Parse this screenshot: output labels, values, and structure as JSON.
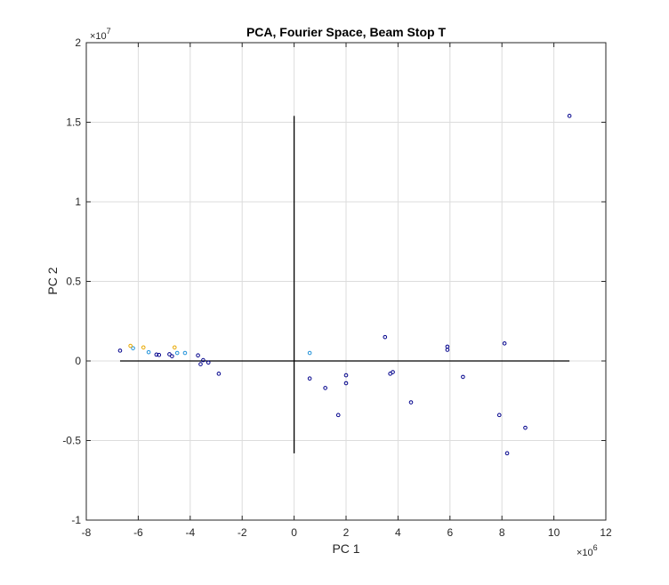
{
  "chart_data": {
    "type": "scatter",
    "title": "PCA, Fourier Space, Beam Stop T",
    "xlabel": "PC 1",
    "ylabel": "PC 2",
    "xlim": [
      -8000000,
      12000000
    ],
    "ylim": [
      -10000000,
      20000000
    ],
    "grid": true,
    "x_ticks": [
      -8,
      -6,
      -4,
      -2,
      0,
      2,
      4,
      6,
      8,
      10,
      12
    ],
    "y_ticks": [
      -1,
      -0.5,
      0,
      0.5,
      1,
      1.5,
      2
    ],
    "x_multiplier": "×10",
    "x_exponent": "6",
    "y_multiplier": "×10",
    "y_exponent": "7",
    "reference_lines": [
      {
        "x": [
          -6700000,
          10600000
        ],
        "y": [
          0,
          0
        ]
      },
      {
        "x": [
          0,
          0
        ],
        "y": [
          -5800000,
          15400000
        ]
      }
    ],
    "series": [
      {
        "color": "#00008b",
        "points": [
          {
            "x": -6700000,
            "y": 650000
          },
          {
            "x": -5300000,
            "y": 400000
          },
          {
            "x": -5200000,
            "y": 380000
          },
          {
            "x": -4800000,
            "y": 420000
          },
          {
            "x": -4700000,
            "y": 300000
          },
          {
            "x": -3700000,
            "y": 350000
          },
          {
            "x": -3600000,
            "y": -200000
          },
          {
            "x": -3500000,
            "y": 50000
          },
          {
            "x": -3300000,
            "y": -100000
          },
          {
            "x": -2900000,
            "y": -800000
          },
          {
            "x": 600000,
            "y": -1100000
          },
          {
            "x": 1200000,
            "y": -1700000
          },
          {
            "x": 1700000,
            "y": -3400000
          },
          {
            "x": 2000000,
            "y": -900000
          },
          {
            "x": 2000000,
            "y": -1400000
          },
          {
            "x": 3500000,
            "y": 1500000
          },
          {
            "x": 3700000,
            "y": -800000
          },
          {
            "x": 3800000,
            "y": -700000
          },
          {
            "x": 4500000,
            "y": -2600000
          },
          {
            "x": 5900000,
            "y": 900000
          },
          {
            "x": 5900000,
            "y": 700000
          },
          {
            "x": 6500000,
            "y": -1000000
          },
          {
            "x": 7900000,
            "y": -3400000
          },
          {
            "x": 8100000,
            "y": 1100000
          },
          {
            "x": 8200000,
            "y": -5800000
          },
          {
            "x": 8900000,
            "y": -4200000
          },
          {
            "x": 10600000,
            "y": 15400000
          }
        ]
      },
      {
        "color": "#1e90d8",
        "points": [
          {
            "x": -6200000,
            "y": 800000
          },
          {
            "x": -5600000,
            "y": 550000
          },
          {
            "x": -4500000,
            "y": 500000
          },
          {
            "x": -4200000,
            "y": 500000
          },
          {
            "x": 600000,
            "y": 500000
          }
        ]
      },
      {
        "color": "#e8a800",
        "points": [
          {
            "x": -6300000,
            "y": 950000
          },
          {
            "x": -5800000,
            "y": 850000
          },
          {
            "x": -4600000,
            "y": 850000
          }
        ]
      }
    ]
  }
}
